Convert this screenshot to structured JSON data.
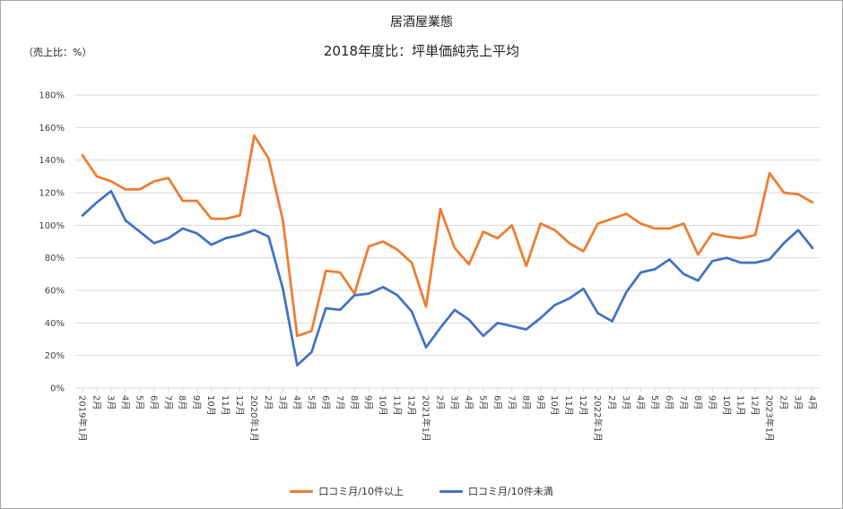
{
  "header": {
    "title": "居酒屋業態",
    "subtitle": "2018年度比：坪単価純売上平均",
    "unit": "（売上比：%）"
  },
  "colors": {
    "series1": "#ED7D31",
    "series2": "#4472C4",
    "grid": "#d9d9d9"
  },
  "chart_data": {
    "type": "line",
    "title": "2018年度比：坪単価純売上平均",
    "ylabel": "（売上比：%）",
    "ylim": [
      0,
      180
    ],
    "yticks": [
      "0%",
      "20%",
      "40%",
      "60%",
      "80%",
      "100%",
      "120%",
      "140%",
      "160%",
      "180%"
    ],
    "grid": true,
    "legend_position": "bottom",
    "categories": [
      "2019年1月",
      "2月",
      "3月",
      "4月",
      "5月",
      "6月",
      "7月",
      "8月",
      "9月",
      "10月",
      "11月",
      "12月",
      "2020年1月",
      "2月",
      "3月",
      "4月",
      "5月",
      "6月",
      "7月",
      "8月",
      "9月",
      "10月",
      "11月",
      "12月",
      "2021年1月",
      "2月",
      "3月",
      "4月",
      "5月",
      "6月",
      "7月",
      "8月",
      "9月",
      "10月",
      "11月",
      "12月",
      "2022年1月",
      "2月",
      "3月",
      "4月",
      "5月",
      "6月",
      "7月",
      "8月",
      "9月",
      "10月",
      "11月",
      "12月",
      "2023年1月",
      "2月",
      "3月",
      "4月"
    ],
    "series": [
      {
        "name": "口コミ月/10件以上",
        "values": [
          143,
          130,
          127,
          122,
          122,
          127,
          129,
          115,
          115,
          104,
          104,
          106,
          155,
          141,
          103,
          32,
          35,
          72,
          71,
          58,
          87,
          90,
          85,
          77,
          50,
          110,
          86,
          76,
          96,
          92,
          100,
          75,
          101,
          97,
          89,
          84,
          101,
          104,
          107,
          101,
          98,
          98,
          101,
          82,
          95,
          93,
          92,
          94,
          132,
          120,
          119,
          114
        ]
      },
      {
        "name": "口コミ月/10件未満",
        "values": [
          106,
          114,
          121,
          103,
          96,
          89,
          92,
          98,
          95,
          88,
          92,
          94,
          97,
          93,
          61,
          14,
          22,
          49,
          48,
          57,
          58,
          62,
          57,
          47,
          25,
          37,
          48,
          42,
          32,
          40,
          38,
          36,
          43,
          51,
          55,
          61,
          46,
          41,
          59,
          71,
          73,
          79,
          70,
          66,
          78,
          80,
          77,
          77,
          79,
          89,
          97,
          86
        ]
      }
    ]
  }
}
